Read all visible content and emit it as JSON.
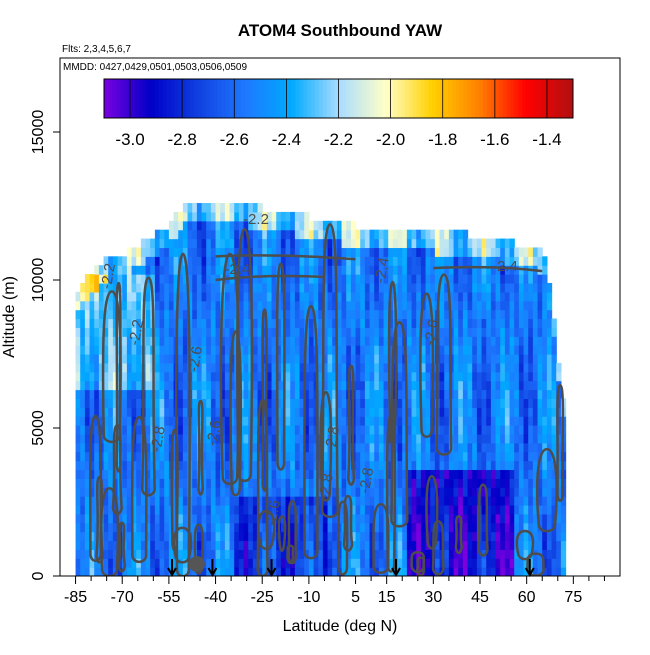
{
  "chart_data": {
    "type": "heatmap",
    "title": "ATOM4 Southbound YAW",
    "flights_label": "Flts: 2,3,4,5,6,7",
    "dates_label": "MMDD: 0427,0429,0501,0503,0506,0509",
    "xlabel": "Latitude (deg N)",
    "ylabel": "Altitude (m)",
    "xlim": [
      -85,
      85
    ],
    "ylim": [
      0,
      17500
    ],
    "x_ticks": [
      -85,
      -70,
      -55,
      -40,
      -25,
      -10,
      5,
      15,
      30,
      45,
      60,
      75
    ],
    "x_minor_ticks": [
      -80,
      -75,
      -65,
      -60,
      -50,
      -45,
      -35,
      -30,
      -20,
      -15,
      -5,
      0,
      10,
      20,
      25,
      35,
      40,
      50,
      55,
      65,
      70,
      80,
      85
    ],
    "y_ticks": [
      0,
      5000,
      10000,
      15000
    ],
    "colorbar": {
      "range": [
        -3.1,
        -1.3
      ],
      "ticks": [
        -3.0,
        -2.8,
        -2.6,
        -2.4,
        -2.2,
        -2.0,
        -1.8,
        -1.6,
        -1.4
      ],
      "tick_labels": [
        "-3.0",
        "-2.8",
        "-2.6",
        "-2.4",
        "-2.2",
        "-2.0",
        "-1.8",
        "-1.6",
        "-1.4"
      ],
      "colors": [
        "#7a00e0",
        "#0000c8",
        "#1040e0",
        "#1e78ff",
        "#00aaff",
        "#a8dcff",
        "#ffffc8",
        "#ffd000",
        "#ff8000",
        "#ff0000",
        "#b01010"
      ]
    },
    "contour_labels": [
      "-2.2",
      "-2.4",
      "-2.4",
      "-2.2",
      "-2.2",
      "-2.6",
      "-2.8",
      "-2.6",
      "-2.8",
      "-2.6",
      "-2.8",
      "-2.8",
      "-2.4",
      "-2.6"
    ],
    "profile_markers_lat": [
      -54,
      -41,
      -22,
      18,
      61
    ],
    "data_region": {
      "lat_range": [
        -85,
        72
      ],
      "top_altitude_m": [
        [
          -85,
          9600
        ],
        [
          -80,
          10200
        ],
        [
          -75,
          10600
        ],
        [
          -70,
          10800
        ],
        [
          -60,
          11400
        ],
        [
          -55,
          11800
        ],
        [
          -50,
          12500
        ],
        [
          -40,
          12400
        ],
        [
          -30,
          12400
        ],
        [
          -20,
          12200
        ],
        [
          -10,
          12000
        ],
        [
          0,
          11800
        ],
        [
          10,
          11600
        ],
        [
          20,
          11500
        ],
        [
          30,
          11500
        ],
        [
          40,
          11400
        ],
        [
          50,
          11200
        ],
        [
          60,
          11000
        ],
        [
          65,
          10800
        ],
        [
          68,
          8500
        ],
        [
          72,
          5000
        ]
      ],
      "mean_value": -2.55
    }
  }
}
